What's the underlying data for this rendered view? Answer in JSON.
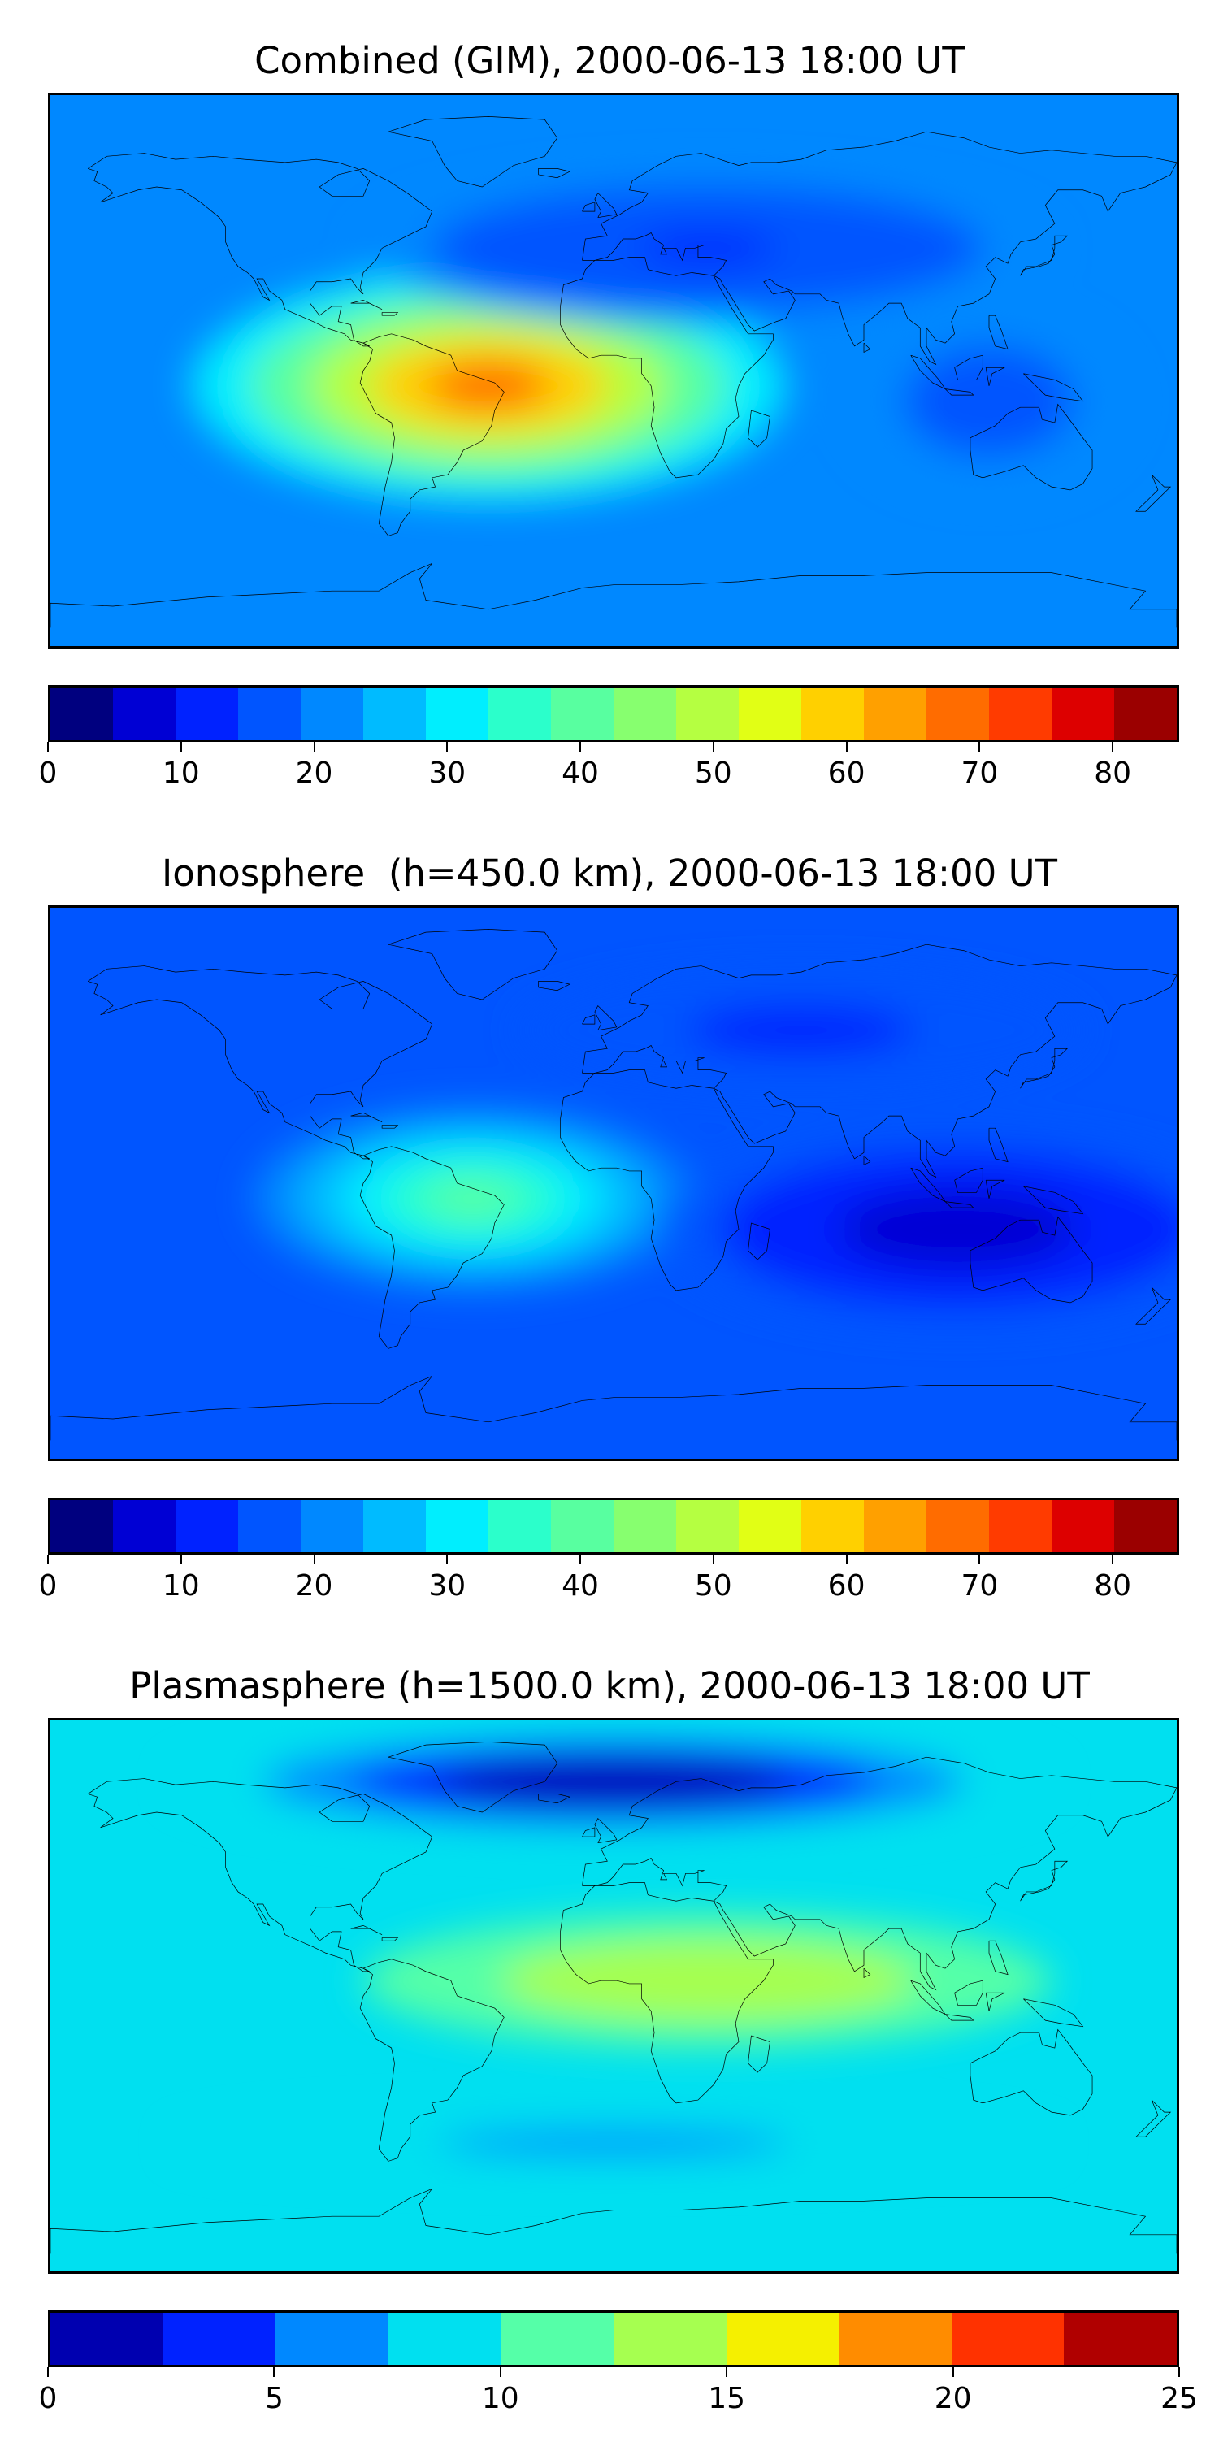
{
  "chart_data": [
    {
      "type": "heatmap",
      "title": "Combined (GIM), 2000-06-13 18:00 UT",
      "colorbar": {
        "levels": [
          0,
          5,
          10,
          15,
          20,
          25,
          30,
          35,
          40,
          45,
          50,
          55,
          60,
          65,
          70,
          75,
          80,
          85
        ],
        "tick_labels": [
          "0",
          "10",
          "20",
          "30",
          "40",
          "50",
          "60",
          "70",
          "80"
        ],
        "tick_values": [
          0,
          10,
          20,
          30,
          40,
          50,
          60,
          70,
          80
        ],
        "colors": [
          "#00007f",
          "#0000d4",
          "#0022ff",
          "#0055ff",
          "#0088ff",
          "#00bbff",
          "#00eefe",
          "#2bffcb",
          "#58ffa0",
          "#87ff6f",
          "#b5ff41",
          "#e1ff15",
          "#ffd000",
          "#ffa000",
          "#ff6c00",
          "#ff3b00",
          "#dd0000",
          "#9b0000"
        ]
      },
      "features": [
        {
          "lon": -63,
          "lat": -14,
          "value": 78,
          "sx": 55,
          "sy": 17
        },
        {
          "lon": -22,
          "lat": 3,
          "value": 72,
          "sx": 24,
          "sy": 14
        },
        {
          "lon": -40,
          "lat": -5,
          "value": 50,
          "sx": 95,
          "sy": 38
        },
        {
          "lon": 30,
          "lat": 40,
          "value": -8,
          "sx": 110,
          "sy": 25
        },
        {
          "lon": 120,
          "lat": -10,
          "value": -5,
          "sx": 45,
          "sy": 30
        }
      ],
      "background": 22
    },
    {
      "type": "heatmap",
      "title": "Ionosphere  (h=450.0 km), 2000-06-13 18:00 UT",
      "colorbar": {
        "levels": [
          0,
          5,
          10,
          15,
          20,
          25,
          30,
          35,
          40,
          45,
          50,
          55,
          60,
          65,
          70,
          75,
          80,
          85
        ],
        "tick_labels": [
          "0",
          "10",
          "20",
          "30",
          "40",
          "50",
          "60",
          "70",
          "80"
        ],
        "tick_values": [
          0,
          10,
          20,
          30,
          40,
          50,
          60,
          70,
          80
        ],
        "colors": [
          "#00007f",
          "#0000d4",
          "#0022ff",
          "#0055ff",
          "#0088ff",
          "#00bbff",
          "#00eefe",
          "#2bffcb",
          "#58ffa0",
          "#87ff6f",
          "#b5ff41",
          "#e1ff15",
          "#ffd000",
          "#ffa000",
          "#ff6c00",
          "#ff3b00",
          "#dd0000",
          "#9b0000"
        ]
      },
      "features": [
        {
          "lon": -65,
          "lat": -12,
          "value": 42,
          "sx": 42,
          "sy": 14
        },
        {
          "lon": -45,
          "lat": -5,
          "value": 22,
          "sx": 70,
          "sy": 30
        },
        {
          "lon": 110,
          "lat": -15,
          "value": -14,
          "sx": 95,
          "sy": 32
        },
        {
          "lon": 60,
          "lat": 50,
          "value": -6,
          "sx": 90,
          "sy": 20
        }
      ],
      "background": 19
    },
    {
      "type": "heatmap",
      "title": "Plasmasphere (h=1500.0 km), 2000-06-13 18:00 UT",
      "colorbar": {
        "levels": [
          0,
          2.5,
          5,
          7.5,
          10,
          12.5,
          15,
          17.5,
          20,
          22.5,
          25
        ],
        "tick_labels": [
          "0",
          "5",
          "10",
          "15",
          "20",
          "25"
        ],
        "tick_values": [
          0,
          5,
          10,
          15,
          20,
          25
        ],
        "colors": [
          "#0000b0",
          "#0022ff",
          "#0088ff",
          "#00e0f0",
          "#55ffa8",
          "#a6ff50",
          "#f5f000",
          "#ff8c00",
          "#ff3200",
          "#b00000"
        ]
      },
      "features": [
        {
          "lon": -10,
          "lat": 5,
          "value": 7,
          "sx": 55,
          "sy": 15
        },
        {
          "lon": 30,
          "lat": 5,
          "value": 5,
          "sx": 110,
          "sy": 22
        },
        {
          "lon": 0,
          "lat": 70,
          "value": -9,
          "sx": 140,
          "sy": 18
        },
        {
          "lon": 0,
          "lat": -48,
          "value": -3,
          "sx": 140,
          "sy": 10
        }
      ],
      "background": 9.5
    }
  ]
}
